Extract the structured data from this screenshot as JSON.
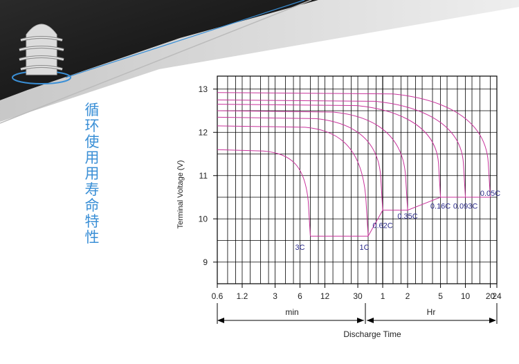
{
  "page": {
    "vertical_title": "循环使用用寿命特性",
    "title_color": "#3a8fd6"
  },
  "chart_data": {
    "type": "line",
    "title": "",
    "ylabel": "Terminal Voltage  (V)",
    "xlabel": "Discharge Time",
    "ylim": [
      8.5,
      13.3
    ],
    "yticks": [
      "13",
      "12",
      "11",
      "10",
      "9"
    ],
    "x_axis_scale": "log",
    "x_ticks_minutes": [
      0.6,
      1.2,
      3,
      6,
      12,
      30,
      60,
      120,
      300,
      600,
      1200,
      1440
    ],
    "x_tick_labels": [
      "0.6",
      "1.2",
      "3",
      "6",
      "12",
      "30",
      "1",
      "2",
      "5",
      "10",
      "20",
      "24"
    ],
    "unit_ranges": {
      "min_label": "min",
      "hr_label": "Hr"
    },
    "grid": true,
    "line_color": "#c8329b",
    "label_color": "#2a2a8a",
    "series": [
      {
        "name": "3C",
        "initial_v": 11.6,
        "end_min": 8,
        "end_v": 9.6
      },
      {
        "name": "1C",
        "initial_v": 12.15,
        "end_min": 40,
        "end_v": 9.6
      },
      {
        "name": "0.62C",
        "initial_v": 12.35,
        "end_min": 60,
        "end_v": 10.2
      },
      {
        "name": "0.35C",
        "initial_v": 12.5,
        "end_min": 120,
        "end_v": 10.2
      },
      {
        "name": "0.16C",
        "initial_v": 12.65,
        "end_min": 300,
        "end_v": 10.5
      },
      {
        "name": "0.093C",
        "initial_v": 12.75,
        "end_min": 600,
        "end_v": 10.5
      },
      {
        "name": "0.05C",
        "initial_v": 12.92,
        "end_min": 1200,
        "end_v": 10.5
      }
    ],
    "endpoint_line": [
      {
        "min": 8,
        "v": 9.6
      },
      {
        "min": 40,
        "v": 9.6
      },
      {
        "min": 60,
        "v": 10.2
      },
      {
        "min": 120,
        "v": 10.2
      },
      {
        "min": 300,
        "v": 10.5
      },
      {
        "min": 1200,
        "v": 10.5
      }
    ],
    "label_positions": [
      {
        "text": "3C",
        "min": 6,
        "v": 9.35
      },
      {
        "text": "1C",
        "min": 36,
        "v": 9.35
      },
      {
        "text": "0.62C",
        "min": 60,
        "v": 9.85
      },
      {
        "text": "0.35C",
        "min": 120,
        "v": 10.07
      },
      {
        "text": "0.16C",
        "min": 300,
        "v": 10.3
      },
      {
        "text": "0.093C",
        "min": 600,
        "v": 10.3
      },
      {
        "text": "0.05C",
        "min": 1200,
        "v": 10.6
      }
    ]
  }
}
